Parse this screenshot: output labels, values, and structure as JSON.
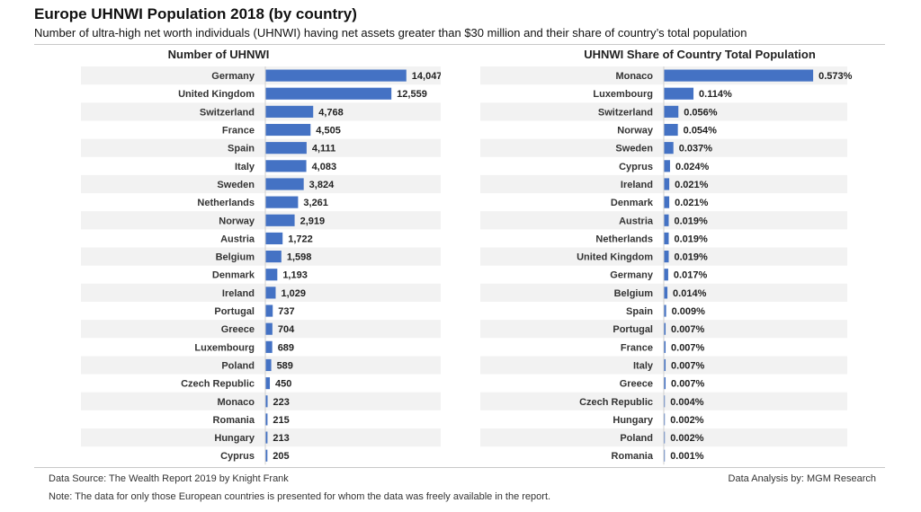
{
  "title": "Europe UHNWI Population 2018 (by country)",
  "subtitle": "Number of ultra-high net worth individuals (UHNWI) having net assets greater than $30 million and their share of country’s total population",
  "footer": {
    "source": "Data Source: The Wealth Report 2019 by Knight Frank",
    "analysis": "Data Analysis by: MGM Research",
    "note": "Note: The data for only those European countries is presented for whom the data was freely available in the report."
  },
  "colors": {
    "bar": "#4472c4",
    "row_stripe": "#f2f2f2"
  },
  "chart_data": [
    {
      "type": "bar",
      "orientation": "horizontal",
      "title": "Number of UHNWI",
      "categories": [
        "Germany",
        "United Kingdom",
        "Switzerland",
        "France",
        "Spain",
        "Italy",
        "Sweden",
        "Netherlands",
        "Norway",
        "Austria",
        "Belgium",
        "Denmark",
        "Ireland",
        "Portugal",
        "Greece",
        "Luxembourg",
        "Poland",
        "Czech Republic",
        "Monaco",
        "Romania",
        "Hungary",
        "Cyprus"
      ],
      "values": [
        14047,
        12559,
        4768,
        4505,
        4111,
        4083,
        3824,
        3261,
        2919,
        1722,
        1598,
        1193,
        1029,
        737,
        704,
        689,
        589,
        450,
        223,
        215,
        213,
        205
      ],
      "labels": [
        "14,047",
        "12,559",
        "4,768",
        "4,505",
        "4,111",
        "4,083",
        "3,824",
        "3,261",
        "2,919",
        "1,722",
        "1,598",
        "1,193",
        "1,029",
        "737",
        "704",
        "689",
        "589",
        "450",
        "223",
        "215",
        "213",
        "205"
      ],
      "xlim": [
        0,
        15500
      ]
    },
    {
      "type": "bar",
      "orientation": "horizontal",
      "title": "UHNWI Share of Country Total Population",
      "categories": [
        "Monaco",
        "Luxembourg",
        "Switzerland",
        "Norway",
        "Sweden",
        "Cyprus",
        "Ireland",
        "Denmark",
        "Austria",
        "Netherlands",
        "United Kingdom",
        "Germany",
        "Belgium",
        "Spain",
        "Portugal",
        "France",
        "Italy",
        "Greece",
        "Czech Republic",
        "Hungary",
        "Poland",
        "Romania"
      ],
      "values": [
        0.573,
        0.114,
        0.056,
        0.054,
        0.037,
        0.024,
        0.021,
        0.021,
        0.019,
        0.019,
        0.019,
        0.017,
        0.014,
        0.009,
        0.007,
        0.007,
        0.007,
        0.007,
        0.004,
        0.002,
        0.002,
        0.001
      ],
      "labels": [
        "0.573%",
        "0.114%",
        "0.056%",
        "0.054%",
        "0.037%",
        "0.024%",
        "0.021%",
        "0.021%",
        "0.019%",
        "0.019%",
        "0.019%",
        "0.017%",
        "0.014%",
        "0.009%",
        "0.007%",
        "0.007%",
        "0.007%",
        "0.007%",
        "0.004%",
        "0.002%",
        "0.002%",
        "0.001%"
      ],
      "xlim": [
        0,
        0.69
      ]
    }
  ]
}
